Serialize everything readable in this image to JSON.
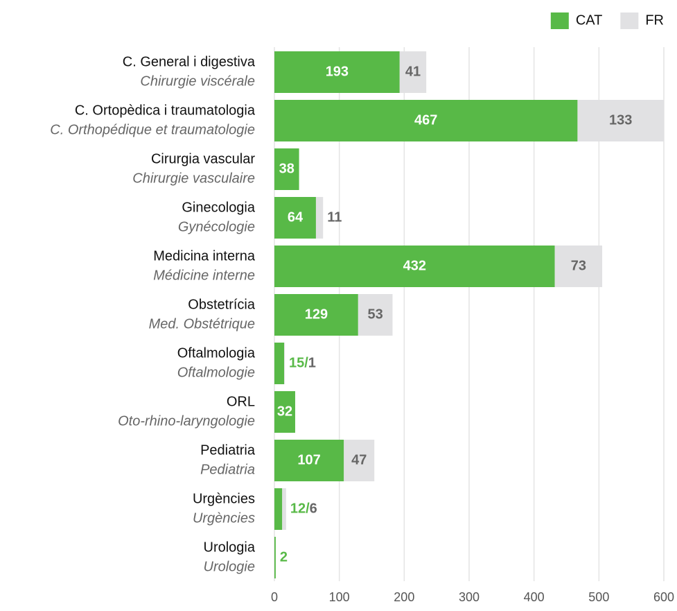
{
  "chart_data": {
    "type": "stacked_bar_horizontal",
    "categories": [
      "C. General i digestiva",
      "C. Ortopèdica i traumatologia",
      "Cirurgia vascular",
      "Ginecologia",
      "Medicina interna",
      "Obstetrícia",
      "Oftalmologia",
      "ORL",
      "Pediatria",
      "Urgències",
      "Urologia"
    ],
    "category_subtitles": [
      "Chirurgie viscérale",
      "C. Orthopédique et traumatologie",
      "Chirurgie vasculaire",
      "Gynécologie",
      "Médicine interne",
      "Med. Obstétrique",
      "Oftalmologie",
      "Oto-rhino-laryngologie",
      "Pediatria",
      "Urgències",
      "Urologie"
    ],
    "series": [
      {
        "name": "CAT",
        "color": "#58b947",
        "values": [
          193,
          467,
          38,
          64,
          432,
          129,
          15,
          32,
          107,
          12,
          2
        ],
        "value_labels": [
          "193",
          "467",
          "38",
          "64",
          "432",
          "129",
          "15/",
          "32",
          "107",
          "12/",
          "2"
        ]
      },
      {
        "name": "FR",
        "color": "#e1e1e3",
        "values": [
          41,
          133,
          null,
          11,
          73,
          53,
          1,
          null,
          47,
          6,
          null
        ]
      }
    ],
    "xlim": [
      0,
      600
    ],
    "xticks": [
      0,
      100,
      200,
      300,
      400,
      500,
      600
    ],
    "grid": true,
    "legend": "top-right"
  }
}
